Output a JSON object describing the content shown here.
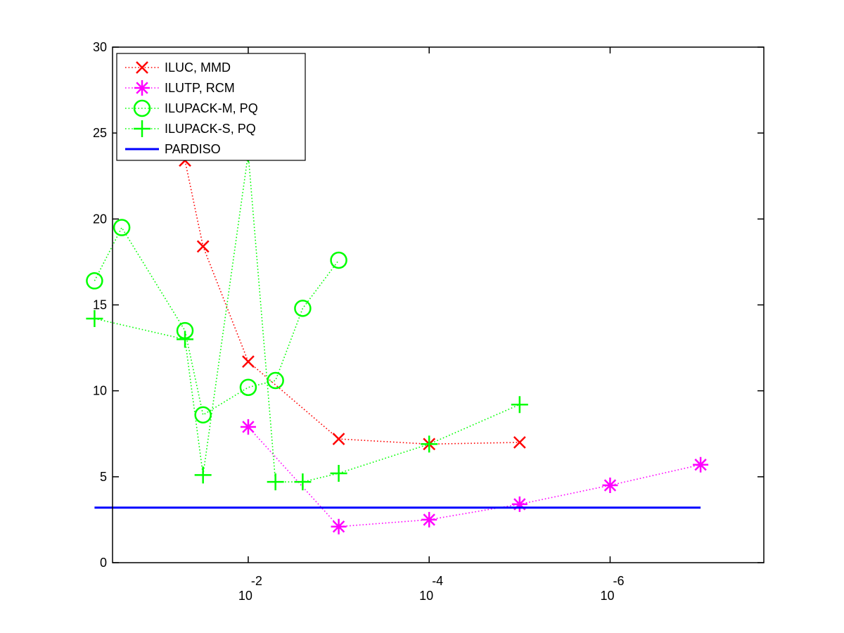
{
  "chart_data": {
    "type": "line",
    "title": "",
    "xlabel": "",
    "ylabel": "",
    "x_scale": "log",
    "x_axis_reversed": true,
    "xlim": [
      0.3162,
      2e-08
    ],
    "ylim": [
      0,
      30
    ],
    "y_ticks": [
      0,
      5,
      10,
      15,
      20,
      25,
      30
    ],
    "x_ticks": [
      {
        "value": 0.01,
        "base": "10",
        "exponent": "-2"
      },
      {
        "value": 0.0001,
        "base": "10",
        "exponent": "-4"
      },
      {
        "value": 1e-06,
        "base": "10",
        "exponent": "-6"
      }
    ],
    "grid": false,
    "legend_position": "top-left",
    "series": [
      {
        "name": "ILUC, MMD",
        "color": "#ff0000",
        "marker": "x",
        "line_style": "dotted",
        "x": [
          0.05,
          0.0316,
          0.01,
          0.001,
          0.0001,
          1e-05
        ],
        "y": [
          23.4,
          18.4,
          11.7,
          7.2,
          6.9,
          7.0
        ]
      },
      {
        "name": "ILUTP, RCM",
        "color": "#ff00ff",
        "marker": "asterisk",
        "line_style": "dotted",
        "x": [
          0.01,
          0.001,
          0.0001,
          1e-05,
          1e-06,
          1e-07
        ],
        "y": [
          7.9,
          2.1,
          2.5,
          3.4,
          4.5,
          5.7
        ]
      },
      {
        "name": "ILUPACK-M, PQ",
        "color": "#00ff00",
        "marker": "circle",
        "line_style": "dotted",
        "x": [
          0.5,
          0.25,
          0.05,
          0.0316,
          0.01,
          0.005,
          0.0025,
          0.001
        ],
        "y": [
          16.4,
          19.5,
          13.5,
          8.6,
          10.2,
          10.6,
          14.8,
          17.6
        ]
      },
      {
        "name": "ILUPACK-S, PQ",
        "color": "#00ff00",
        "marker": "plus",
        "line_style": "dotted",
        "x": [
          0.5,
          0.05,
          0.0316,
          0.01,
          0.005,
          0.0025,
          0.001,
          0.0001,
          1e-05
        ],
        "y": [
          14.2,
          13.0,
          5.1,
          23.8,
          4.7,
          4.7,
          5.2,
          6.9,
          9.2
        ]
      },
      {
        "name": "PARDISO",
        "color": "#0000ff",
        "marker": "none",
        "line_style": "solid",
        "x": [
          0.5,
          1e-07
        ],
        "y": [
          3.2,
          3.2
        ]
      }
    ]
  }
}
